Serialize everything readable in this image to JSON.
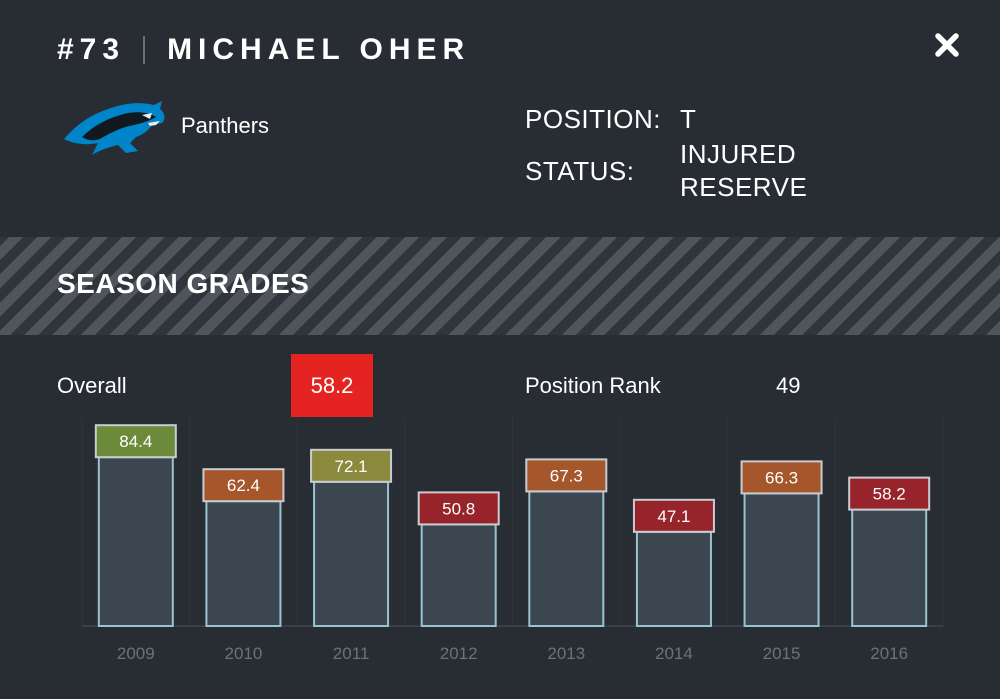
{
  "player": {
    "number": "#73",
    "name": "MICHAEL OHER"
  },
  "team": {
    "name": "Panthers",
    "logo_icon": "panther-logo-icon",
    "logo_colors": {
      "primary": "#0085ca",
      "dark": "#101820"
    }
  },
  "info": {
    "position_label": "POSITION:",
    "position_value": "T",
    "status_label": "STATUS:",
    "status_value": "INJURED RESERVE"
  },
  "section": {
    "title": "SEASON GRADES"
  },
  "summary": {
    "overall_label": "Overall",
    "overall_value": "58.2",
    "overall_color": "#e52421",
    "rank_label": "Position Rank",
    "rank_value": "49"
  },
  "close_icon": "close-icon",
  "colors": {
    "background": "#282c33",
    "bar_fill": "#3b4650",
    "bar_stroke": "#9ac3d1",
    "grade_green": "#6b8a3a",
    "grade_olive": "#8b8a3c",
    "grade_orange": "#a5562a",
    "grade_red": "#97242a"
  },
  "chart_data": {
    "type": "bar",
    "title": "SEASON GRADES",
    "xlabel": "",
    "ylabel": "",
    "categories": [
      "2009",
      "2010",
      "2011",
      "2012",
      "2013",
      "2014",
      "2015",
      "2016"
    ],
    "values": [
      84.4,
      62.4,
      72.1,
      50.8,
      67.3,
      47.1,
      66.3,
      58.2
    ],
    "labels": [
      "84.4",
      "62.4",
      "72.1",
      "50.8",
      "67.3",
      "47.1",
      "66.3",
      "58.2"
    ],
    "label_colors": [
      "#6b8a3a",
      "#a5562a",
      "#8b8a3c",
      "#97242a",
      "#a5562a",
      "#97242a",
      "#a5562a",
      "#97242a"
    ],
    "ylim": [
      0,
      100
    ],
    "grid": true
  }
}
